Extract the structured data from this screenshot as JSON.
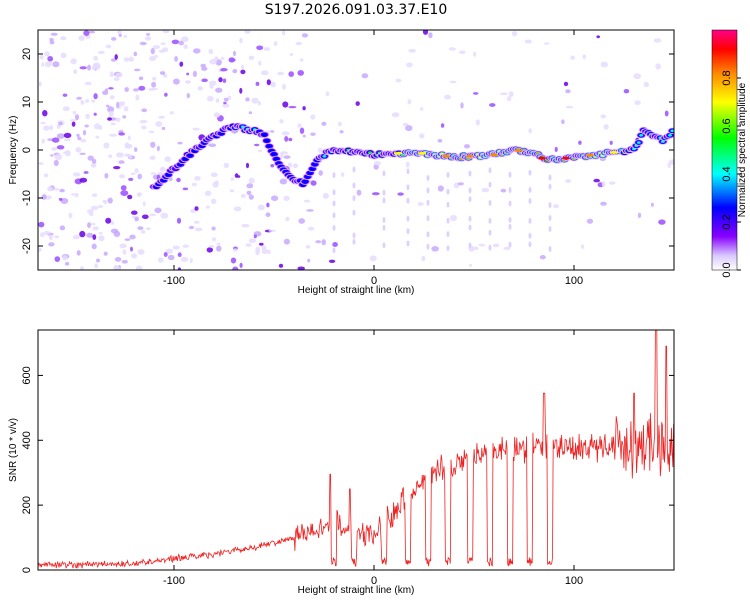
{
  "chart_data": [
    {
      "type": "heatmap",
      "title": "S197.2026.091.03.37.E10",
      "xlabel": "Height of straight line (km)",
      "ylabel": "Frequency (Hz)",
      "xlim": [
        -168,
        150
      ],
      "ylim": [
        -25,
        25
      ],
      "xticks": [
        -100,
        0,
        100
      ],
      "yticks": [
        -20,
        -10,
        0,
        10,
        20
      ],
      "colorbar": {
        "label": "Normalized spectral amplitude",
        "range": [
          0.0,
          1.0
        ],
        "ticks": [
          0.0,
          0.2,
          0.4,
          0.6,
          0.8
        ],
        "colors": [
          "#ffffff",
          "#d9c9ff",
          "#8800ff",
          "#0000ff",
          "#00ffff",
          "#00ff00",
          "#ffff00",
          "#ff8800",
          "#ff0000",
          "#ff0088"
        ]
      },
      "ridge": {
        "x": [
          -110,
          -100,
          -90,
          -80,
          -70,
          -60,
          -55,
          -50,
          -45,
          -40,
          -35,
          -30,
          -25,
          -20,
          0,
          20,
          40,
          60,
          70,
          80,
          85,
          90,
          100,
          120,
          130,
          135,
          140,
          145,
          150
        ],
        "frequency": [
          -8,
          -4,
          0,
          3,
          5,
          4,
          3,
          -1,
          -4,
          -6,
          -7,
          -3,
          -1,
          0,
          -1,
          -0.5,
          -1.5,
          -1,
          0,
          -0.5,
          -2,
          -2,
          -1.5,
          -0.5,
          0,
          4,
          3,
          2,
          4
        ],
        "amplitude": [
          0.3,
          0.25,
          0.3,
          0.35,
          0.4,
          0.45,
          0.35,
          0.3,
          0.3,
          0.35,
          0.3,
          0.35,
          0.45,
          0.55,
          0.6,
          0.7,
          0.85,
          0.8,
          0.85,
          0.8,
          0.95,
          0.9,
          0.9,
          0.75,
          0.55,
          0.45,
          0.4,
          0.4,
          0.45
        ]
      }
    },
    {
      "type": "line",
      "xlabel": "Height of straight line (km)",
      "ylabel": "SNR (10 * v/v)",
      "xlim": [
        -168,
        150
      ],
      "ylim": [
        0,
        740
      ],
      "xticks": [
        -100,
        0,
        100
      ],
      "yticks": [
        0,
        200,
        400,
        600
      ],
      "series": [
        {
          "name": "SNR",
          "color": "#ee2222",
          "envelope_x": [
            -168,
            -120,
            -100,
            -80,
            -60,
            -40,
            -30,
            -20,
            -10,
            0,
            10,
            20,
            30,
            40,
            50,
            60,
            70,
            80,
            90,
            100,
            110,
            120,
            130,
            140,
            150
          ],
          "envelope_level": [
            15,
            20,
            35,
            50,
            70,
            100,
            120,
            150,
            120,
            100,
            180,
            250,
            300,
            330,
            350,
            370,
            380,
            380,
            380,
            380,
            380,
            385,
            385,
            390,
            380
          ],
          "dropouts_x": [
            -20,
            -10,
            5,
            17,
            27,
            37,
            48,
            58,
            68,
            78,
            88
          ],
          "spikes": [
            {
              "x": -22,
              "y": 295
            },
            {
              "x": -12,
              "y": 250
            },
            {
              "x": 85,
              "y": 545
            },
            {
              "x": 130,
              "y": 545
            },
            {
              "x": 141,
              "y": 740
            },
            {
              "x": 146,
              "y": 690
            }
          ]
        }
      ]
    }
  ]
}
